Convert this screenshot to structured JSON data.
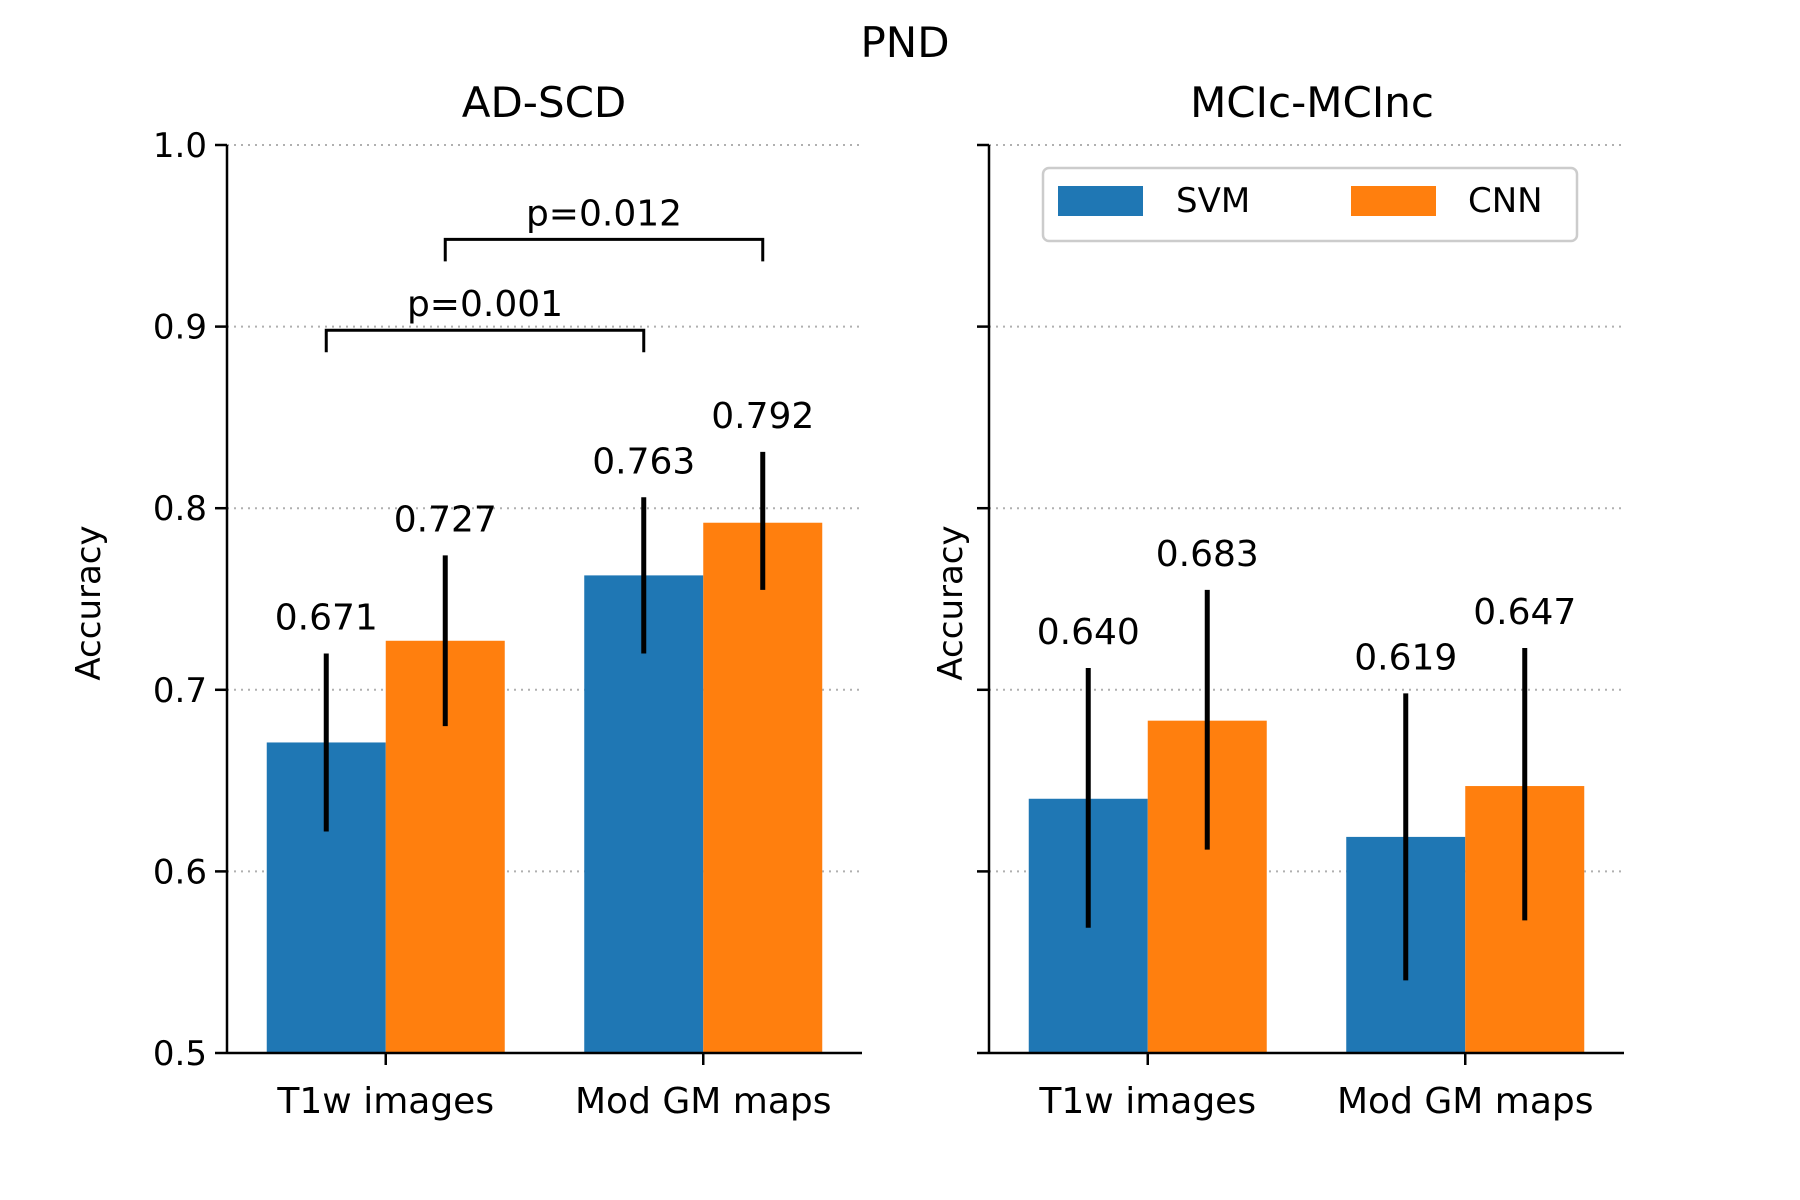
{
  "figure": {
    "suptitle": "PND"
  },
  "legend": {
    "placement": "top-center",
    "entries": [
      {
        "name": "SVM",
        "color": "#1f77b4"
      },
      {
        "name": "CNN",
        "color": "#ff7f0e"
      }
    ]
  },
  "chart_data": [
    {
      "type": "bar",
      "title": "AD-SCD",
      "ylabel": "Accuracy",
      "ylim": [
        0.5,
        1.0
      ],
      "yticks": [
        "0.5",
        "0.6",
        "0.7",
        "0.8",
        "0.9",
        "1.0"
      ],
      "grid": "horizontal-dotted",
      "categories": [
        "T1w images",
        "Mod GM maps"
      ],
      "series": [
        {
          "name": "SVM",
          "values": [
            0.671,
            0.763
          ],
          "labels": [
            "0.671",
            "0.763"
          ],
          "err_low": [
            0.622,
            0.72
          ],
          "err_high": [
            0.72,
            0.806
          ]
        },
        {
          "name": "CNN",
          "values": [
            0.727,
            0.792
          ],
          "labels": [
            "0.727",
            "0.792"
          ],
          "err_low": [
            0.68,
            0.755
          ],
          "err_high": [
            0.774,
            0.831
          ]
        }
      ],
      "significance": [
        {
          "label": "p=0.001",
          "from": [
            0,
            0
          ],
          "to": [
            1,
            0
          ],
          "y": 0.898
        },
        {
          "label": "p=0.012",
          "from": [
            0,
            1
          ],
          "to": [
            1,
            1
          ],
          "y": 0.948
        }
      ]
    },
    {
      "type": "bar",
      "title": "MCIc-MCInc",
      "ylabel": "Accuracy",
      "ylim": [
        0.5,
        1.0
      ],
      "yticks": [
        "",
        "",
        "",
        "",
        "",
        ""
      ],
      "grid": "horizontal-dotted",
      "categories": [
        "T1w images",
        "Mod GM maps"
      ],
      "series": [
        {
          "name": "SVM",
          "values": [
            0.64,
            0.619
          ],
          "labels": [
            "0.640",
            "0.619"
          ],
          "err_low": [
            0.569,
            0.54
          ],
          "err_high": [
            0.712,
            0.698
          ]
        },
        {
          "name": "CNN",
          "values": [
            0.683,
            0.647
          ],
          "labels": [
            "0.683",
            "0.647"
          ],
          "err_low": [
            0.612,
            0.573
          ],
          "err_high": [
            0.755,
            0.723
          ]
        }
      ],
      "significance": []
    }
  ]
}
